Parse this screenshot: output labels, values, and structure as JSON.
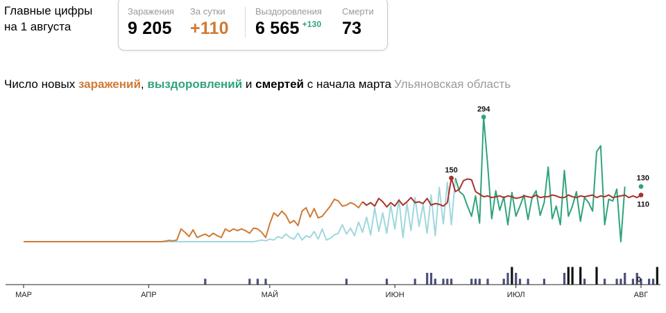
{
  "header": {
    "title_line1": "Главные цифры",
    "title_line2": "на 1 августа"
  },
  "stats": {
    "infections_label": "Заражения",
    "infections_value": "9 205",
    "daily_label": "За сутки",
    "daily_value": "+110",
    "recoveries_label": "Выздоровления",
    "recoveries_value": "6 565",
    "recoveries_daily": "+130",
    "deaths_label": "Смерти",
    "deaths_value": "73"
  },
  "chart_title": {
    "part1": "Число новых ",
    "infections": "заражений",
    "sep1": ", ",
    "recoveries": "выздоровлений",
    "sep2": " и ",
    "deaths": "смертей",
    "part2": " с начала марта",
    "region": "Ульяновская область"
  },
  "colors": {
    "infections": "#cf7a34",
    "infections_late": "#a9312b",
    "recoveries": "#2fa37a",
    "recoveries_light": "#9fd7dd",
    "deaths": "#4a5078",
    "deaths_dark": "#111111",
    "axis": "#222222"
  },
  "chart_data": {
    "type": "line",
    "x_tick_labels": [
      "МАР",
      "АПР",
      "МАЙ",
      "ИЮН",
      "ИЮЛ",
      "АВГ"
    ],
    "x_tick_days": [
      0,
      31,
      61,
      92,
      122,
      153
    ],
    "days": 153,
    "ylim": [
      0,
      300
    ],
    "series": [
      {
        "name": "заражений",
        "values": [
          0,
          0,
          0,
          0,
          0,
          0,
          0,
          0,
          0,
          0,
          0,
          0,
          0,
          0,
          0,
          0,
          0,
          0,
          0,
          0,
          0,
          0,
          0,
          0,
          0,
          0,
          0,
          0,
          0,
          0,
          0,
          0,
          0,
          0,
          0,
          1,
          3,
          2,
          4,
          30,
          22,
          12,
          28,
          10,
          14,
          18,
          12,
          20,
          14,
          10,
          30,
          24,
          30,
          26,
          30,
          26,
          20,
          32,
          30,
          22,
          10,
          42,
          68,
          60,
          72,
          62,
          44,
          50,
          38,
          72,
          80,
          58,
          78,
          56,
          60,
          72,
          84,
          100,
          96,
          84,
          86,
          92,
          88,
          80,
          94,
          86,
          92,
          84,
          102,
          94,
          82,
          92,
          84,
          98,
          86,
          94,
          104,
          92,
          94,
          90,
          102,
          86,
          90,
          88,
          84,
          92,
          150,
          118,
          124,
          144,
          148,
          146,
          118,
          112,
          106,
          108,
          104,
          106,
          108,
          104,
          108,
          106,
          102,
          104,
          108,
          106,
          104,
          110,
          104,
          106,
          106,
          110,
          108,
          104,
          104,
          110,
          106,
          104,
          108,
          106,
          108,
          110,
          104,
          108,
          106,
          110,
          104,
          106,
          108,
          110,
          104,
          108,
          104,
          110
        ],
        "shown_in_legend_as": "заражений"
      },
      {
        "name": "выздоровлений",
        "values": [
          0,
          0,
          0,
          0,
          0,
          0,
          0,
          0,
          0,
          0,
          0,
          0,
          0,
          0,
          0,
          0,
          0,
          0,
          0,
          0,
          0,
          0,
          0,
          0,
          0,
          0,
          0,
          0,
          0,
          0,
          0,
          0,
          0,
          0,
          0,
          0,
          0,
          0,
          0,
          0,
          0,
          0,
          0,
          0,
          0,
          0,
          0,
          0,
          0,
          0,
          0,
          0,
          0,
          0,
          0,
          0,
          0,
          0,
          2,
          4,
          2,
          6,
          4,
          12,
          8,
          18,
          10,
          6,
          20,
          4,
          14,
          10,
          24,
          6,
          30,
          4,
          8,
          16,
          20,
          40,
          18,
          32,
          14,
          46,
          22,
          58,
          16,
          80,
          24,
          68,
          20,
          86,
          30,
          100,
          10,
          90,
          26,
          104,
          36,
          88,
          20,
          110,
          14,
          128,
          42,
          140,
          40,
          150,
          118,
          110,
          84,
          60,
          108,
          44,
          294,
          180,
          54,
          120,
          74,
          106,
          40,
          116,
          60,
          84,
          110,
          52,
          104,
          120,
          62,
          92,
          176,
          54,
          84,
          40,
          168,
          60,
          84,
          118,
          48,
          104,
          92,
          72,
          212,
          226,
          40,
          100,
          96,
          124,
          0,
          130
        ],
        "shown_in_legend_as": "выздоровлений"
      },
      {
        "name": "смертей",
        "values": [
          0,
          0,
          0,
          0,
          0,
          0,
          0,
          0,
          0,
          0,
          0,
          0,
          0,
          0,
          0,
          0,
          0,
          0,
          0,
          0,
          0,
          0,
          0,
          0,
          0,
          0,
          0,
          0,
          0,
          0,
          0,
          0,
          0,
          0,
          0,
          0,
          0,
          0,
          0,
          0,
          0,
          0,
          0,
          0,
          0,
          1,
          0,
          0,
          0,
          0,
          0,
          0,
          0,
          0,
          0,
          0,
          1,
          0,
          1,
          0,
          1,
          0,
          0,
          0,
          0,
          0,
          0,
          0,
          0,
          0,
          0,
          0,
          0,
          0,
          0,
          0,
          0,
          0,
          0,
          0,
          1,
          0,
          0,
          0,
          0,
          0,
          0,
          0,
          0,
          0,
          1,
          0,
          0,
          0,
          0,
          0,
          0,
          1,
          0,
          0,
          2,
          2,
          1,
          0,
          1,
          1,
          1,
          0,
          0,
          0,
          0,
          1,
          1,
          1,
          0,
          1,
          0,
          0,
          0,
          1,
          2,
          3,
          2,
          1,
          0,
          1,
          0,
          0,
          0,
          1,
          0,
          0,
          0,
          0,
          2,
          3,
          3,
          0,
          3,
          1,
          0,
          0,
          3,
          0,
          1,
          0,
          0,
          1,
          1,
          2,
          0,
          1,
          2,
          1,
          0,
          1,
          1,
          3,
          0
        ],
        "shown_in_legend_as": "смертей"
      }
    ],
    "annotations": [
      {
        "series": "заражений",
        "day": 106,
        "value": 150,
        "label": "150"
      },
      {
        "series": "выздоровлений",
        "day": 114,
        "value": 294,
        "label": "294"
      },
      {
        "series": "выздоровлений",
        "day": 153,
        "value": 130,
        "label": "130"
      },
      {
        "series": "заражений",
        "day": 153,
        "value": 110,
        "label": "110"
      },
      {
        "series": "смертей",
        "day": 153,
        "value": 0,
        "label": "0"
      }
    ]
  }
}
